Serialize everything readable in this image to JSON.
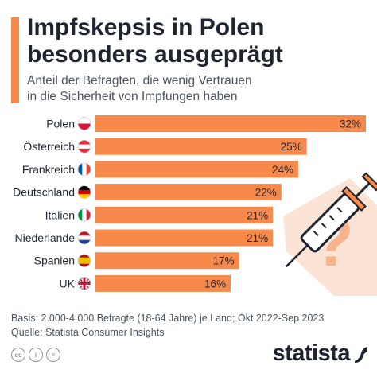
{
  "header": {
    "title": "Impfskepsis in Polen\nbesonders ausgeprägt",
    "subtitle": "Anteil der Befragten, die wenig Vertrauen\nin die Sicherheit von Impfungen haben"
  },
  "chart_data": {
    "type": "bar",
    "orientation": "horizontal",
    "categories": [
      "Polen",
      "Österreich",
      "Frankreich",
      "Deutschland",
      "Italien",
      "Niederlande",
      "Spanien",
      "UK"
    ],
    "values": [
      32,
      25,
      24,
      22,
      21,
      21,
      17,
      16
    ],
    "value_labels": [
      "32%",
      "25%",
      "24%",
      "22%",
      "21%",
      "21%",
      "17%",
      "16%"
    ],
    "flags": [
      "poland-flag-icon",
      "austria-flag-icon",
      "france-flag-icon",
      "germany-flag-icon",
      "italy-flag-icon",
      "netherlands-flag-icon",
      "spain-flag-icon",
      "uk-flag-icon"
    ],
    "xlim": [
      0,
      32
    ],
    "grid": false,
    "bar_color": "#f7894a"
  },
  "footer": {
    "note_basis": "Basis: 2.000-4.000 Befragte (18-64 Jahre) je Land; Okt 2022-Sep 2023",
    "note_source": "Quelle: Statista Consumer Insights",
    "cc_labels": [
      "cc",
      "i",
      "="
    ],
    "brand": "statista"
  },
  "colors": {
    "accent": "#f7894a",
    "text": "#1f2530",
    "illustration_bg": "#fbe3d6"
  }
}
